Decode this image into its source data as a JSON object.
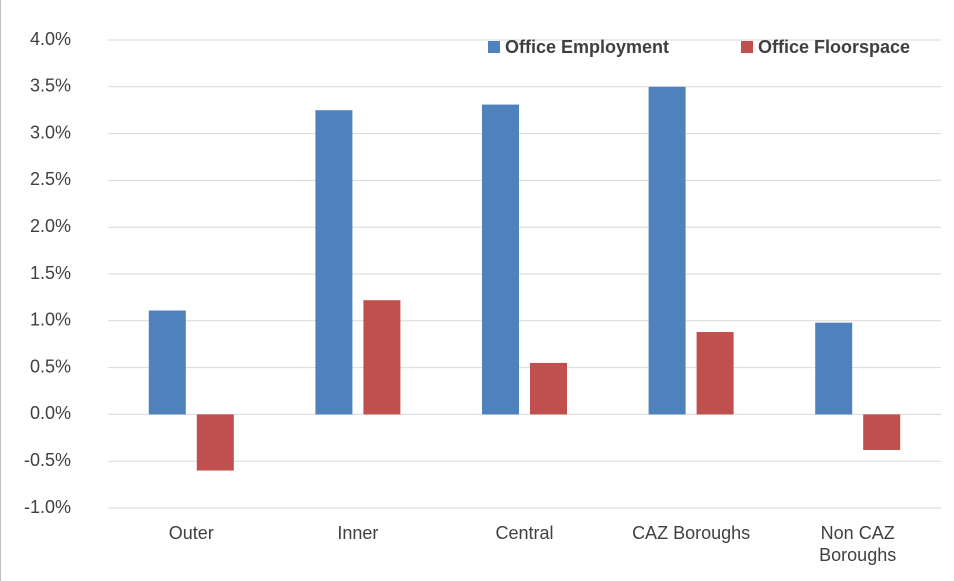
{
  "chart_data": {
    "type": "bar",
    "categories": [
      "Outer",
      "Inner",
      "Central",
      "CAZ Boroughs",
      "Non CAZ Boroughs"
    ],
    "series": [
      {
        "name": "Office Employment",
        "color": "#4f81bd",
        "values": [
          1.11,
          3.25,
          3.31,
          3.5,
          0.98
        ]
      },
      {
        "name": "Office Floorspace",
        "color": "#c0504d",
        "values": [
          -0.6,
          1.22,
          0.55,
          0.88,
          -0.38
        ]
      }
    ],
    "ylim": [
      -1,
      4
    ],
    "yticks": [
      {
        "value": -1,
        "label": "-1.0%"
      },
      {
        "value": -0.5,
        "label": "-0.5%"
      },
      {
        "value": 0,
        "label": "0.0%"
      },
      {
        "value": 0.5,
        "label": "0.5%"
      },
      {
        "value": 1,
        "label": "1.0%"
      },
      {
        "value": 1.5,
        "label": "1.5%"
      },
      {
        "value": 2,
        "label": "2.0%"
      },
      {
        "value": 2.5,
        "label": "2.5%"
      },
      {
        "value": 3,
        "label": "3.0%"
      },
      {
        "value": 3.5,
        "label": "3.5%"
      },
      {
        "value": 4,
        "label": "4.0%"
      }
    ],
    "grid": true,
    "legend": "top"
  }
}
